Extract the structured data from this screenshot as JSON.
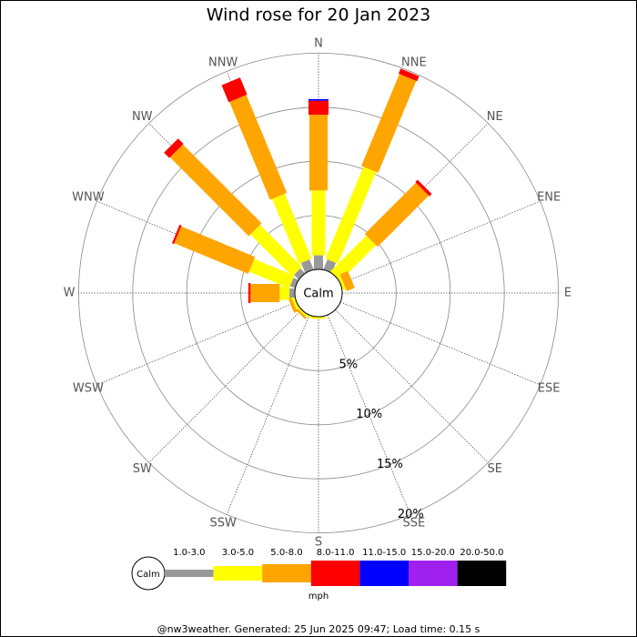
{
  "chart_data": {
    "type": "windrose",
    "title": "Wind rose for 20 Jan 2023",
    "categories": [
      "N",
      "NNE",
      "NE",
      "ENE",
      "E",
      "ESE",
      "SE",
      "SSE",
      "S",
      "SSW",
      "SW",
      "WSW",
      "W",
      "WNW",
      "NW",
      "NNW"
    ],
    "calm_label": "Calm",
    "ylim": [
      0,
      20
    ],
    "yticks": [
      {
        "value": 5,
        "label": "5%"
      },
      {
        "value": 10,
        "label": "10%"
      },
      {
        "value": 15,
        "label": "15%"
      },
      {
        "value": 20,
        "label": "20%"
      }
    ],
    "series": [
      {
        "name": "1.0-3.0",
        "color": "#999999",
        "values": [
          1.3,
          1.0,
          0,
          0,
          0,
          0,
          0,
          0,
          0,
          0,
          0,
          0,
          0.5,
          0.5,
          0.6,
          1.0
        ]
      },
      {
        "name": "3.0-5.0",
        "color": "#ffff00",
        "values": [
          6.0,
          9.2,
          4.7,
          0.3,
          0,
          0,
          0,
          0,
          0.2,
          0.2,
          0.2,
          0.3,
          0.9,
          4.0,
          5.5,
          6.5
        ]
      },
      {
        "name": "5.0-8.0",
        "color": "#ffa500",
        "values": [
          7.0,
          9.2,
          6.7,
          0.8,
          0,
          0,
          0,
          0,
          0,
          0,
          0.2,
          0.3,
          2.7,
          7.4,
          10.3,
          9.8
        ]
      },
      {
        "name": "8.0-11.0",
        "color": "#ff0000",
        "values": [
          1.3,
          0.5,
          0.3,
          0,
          0,
          0,
          0,
          0,
          0,
          0,
          0,
          0,
          0.2,
          0.2,
          0.7,
          1.7
        ]
      },
      {
        "name": "11.0-15.0",
        "color": "#0000ff",
        "values": [
          0.15,
          0,
          0,
          0,
          0,
          0,
          0,
          0,
          0,
          0,
          0,
          0,
          0,
          0,
          0,
          0
        ]
      },
      {
        "name": "15.0-20.0",
        "color": "#a020f0",
        "values": [
          0,
          0,
          0,
          0,
          0,
          0,
          0,
          0,
          0,
          0,
          0,
          0,
          0,
          0,
          0,
          0
        ]
      },
      {
        "name": "20.0-50.0",
        "color": "#000000",
        "values": [
          0,
          0,
          0,
          0,
          0,
          0,
          0,
          0,
          0,
          0,
          0,
          0,
          0,
          0,
          0,
          0
        ]
      }
    ],
    "legend_title": "mph",
    "footer": "@nw3weather. Generated: 25 Jun 2025 09:47; Load time: 0.15 s"
  }
}
